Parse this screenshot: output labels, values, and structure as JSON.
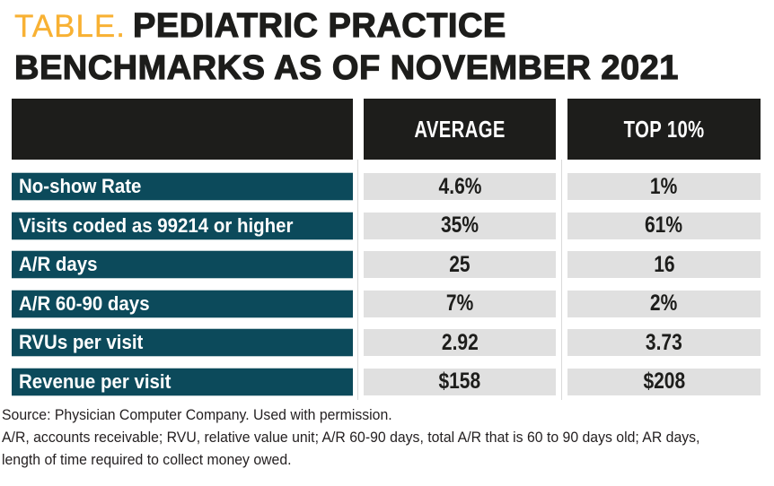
{
  "title": {
    "prefix": "TABLE.",
    "line1": "PEDIATRIC PRACTICE",
    "line2": "BENCHMARKS AS OF NOVEMBER 2021"
  },
  "chart_data": {
    "type": "table",
    "title": "TABLE. PEDIATRIC PRACTICE BENCHMARKS AS OF NOVEMBER 2021",
    "columns": [
      "AVERAGE",
      "TOP 10%"
    ],
    "rows": [
      [
        "No-show Rate",
        "4.6%",
        "1%"
      ],
      [
        "Visits coded as 99214 or higher",
        "35%",
        "61%"
      ],
      [
        "A/R days",
        "25",
        "16"
      ],
      [
        "A/R 60-90 days",
        "7%",
        "2%"
      ],
      [
        "RVUs per visit",
        "2.92",
        "3.73"
      ],
      [
        "Revenue per visit",
        "$158",
        "$208"
      ]
    ],
    "layout_hints": {
      "header_background": "#1D1D1B",
      "row_label_background": "#0C4A5B",
      "value_cell_background": "#E0E0E0",
      "accent_gold": "#F8B133"
    }
  },
  "footer": {
    "source": "Source: Physician Computer Company. Used with permission.",
    "abbreviations_line1": "A/R, accounts receivable; RVU, relative value unit; A/R 60-90 days, total A/R that is 60 to 90 days old; AR days,",
    "abbreviations_line2": "length of time required to collect money owed."
  }
}
